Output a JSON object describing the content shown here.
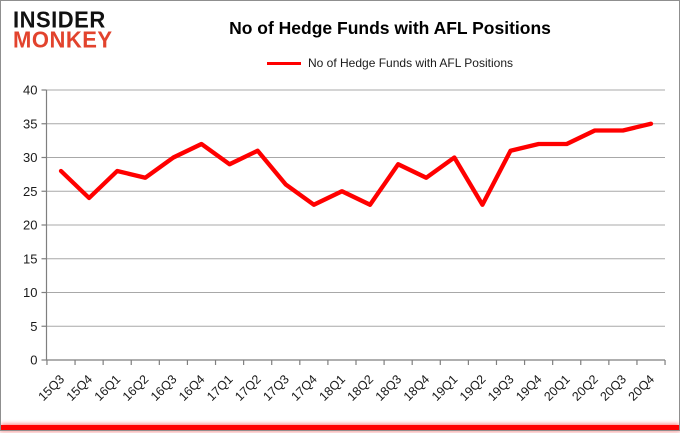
{
  "header": {
    "logo": {
      "line1": "INSIDER",
      "line2": "MONKEY"
    },
    "title": "No of Hedge Funds with AFL Positions",
    "legend_label": "No of Hedge Funds with AFL Positions"
  },
  "colors": {
    "series": "#ff0000",
    "logo_accent": "#e2432d",
    "grid": "#a8a8a8",
    "axis": "#7f7f7f",
    "tick_text": "#1a1a1a",
    "bottom_bar": "#ff0000"
  },
  "chart_data": {
    "type": "line",
    "title": "No of Hedge Funds with AFL Positions",
    "categories": [
      "15Q3",
      "15Q4",
      "16Q1",
      "16Q2",
      "16Q3",
      "16Q4",
      "17Q1",
      "17Q2",
      "17Q3",
      "17Q4",
      "18Q1",
      "18Q2",
      "18Q3",
      "18Q4",
      "19Q1",
      "19Q2",
      "19Q3",
      "19Q4",
      "20Q1",
      "20Q2",
      "20Q3",
      "20Q4"
    ],
    "series": [
      {
        "name": "No of Hedge Funds with AFL Positions",
        "color": "#ff0000",
        "values": [
          28,
          24,
          28,
          27,
          30,
          32,
          29,
          31,
          26,
          23,
          25,
          23,
          29,
          27,
          30,
          23,
          31,
          32,
          32,
          34,
          34,
          35
        ]
      }
    ],
    "xlabel": "",
    "ylabel": "",
    "ylim": [
      0,
      40
    ],
    "ytick_step": 5,
    "grid": true,
    "legend_position": "top-center"
  }
}
